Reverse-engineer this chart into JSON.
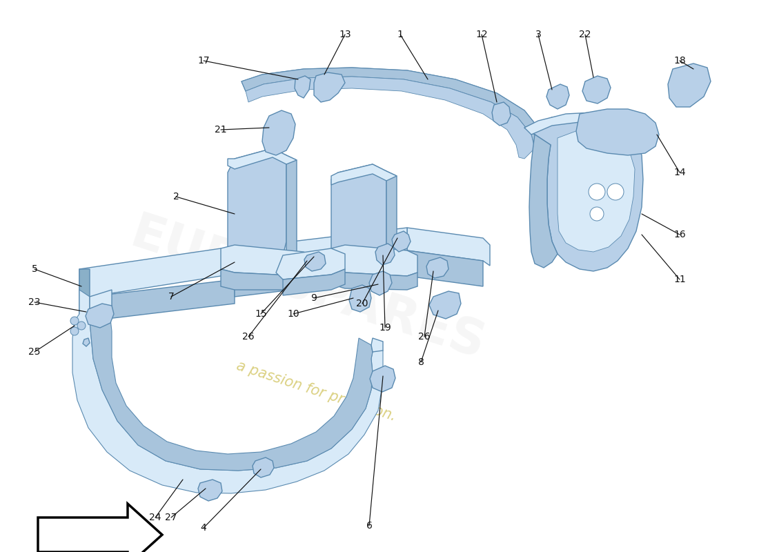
{
  "background_color": "#ffffff",
  "part_color": "#b8d0e8",
  "part_edge_color": "#5a8ab0",
  "part_dark": "#8ab0c8",
  "part_light": "#d8eaf8",
  "part_mid": "#a8c4dc",
  "label_fontsize": 10,
  "label_color": "#111111",
  "line_color": "#111111",
  "watermark_color": "#d0c870",
  "watermark_alpha": 0.55,
  "arrow_fill": "#ffffff",
  "arrow_edge": "#000000"
}
